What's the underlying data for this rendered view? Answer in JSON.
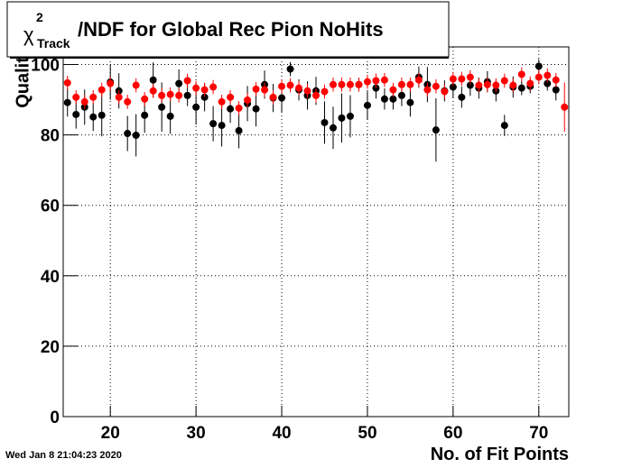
{
  "chart_data": {
    "type": "scatter",
    "title": {
      "symbol": "χ",
      "sup": "2",
      "sub": "Track",
      "text": "/NDF for Global Rec Pion NoHits"
    },
    "x_label": "No. of Fit Points",
    "y_label": "Quality",
    "timestamp": "Wed Jan  8 21:04:23 2020",
    "xlim": [
      14.5,
      73.5
    ],
    "xticks": [
      20,
      30,
      40,
      50,
      60,
      70
    ],
    "ylim": [
      0,
      105
    ],
    "yticks": [
      0,
      20,
      40,
      60,
      80,
      100
    ],
    "grid": true,
    "x": [
      15,
      16,
      17,
      18,
      19,
      20,
      21,
      22,
      23,
      24,
      25,
      26,
      27,
      28,
      29,
      30,
      31,
      32,
      33,
      34,
      35,
      36,
      37,
      38,
      39,
      40,
      41,
      42,
      43,
      44,
      45,
      46,
      47,
      48,
      49,
      50,
      51,
      52,
      53,
      54,
      55,
      56,
      57,
      58,
      59,
      60,
      61,
      62,
      63,
      64,
      65,
      66,
      67,
      68,
      69,
      70,
      71,
      72,
      73
    ],
    "series": [
      {
        "color": "#000000",
        "values": [
          89.2,
          85.8,
          87.9,
          85.1,
          85.6,
          95.0,
          92.5,
          80.4,
          79.9,
          85.6,
          95.6,
          87.9,
          85.3,
          94.6,
          91.2,
          87.9,
          90.7,
          83.2,
          82.7,
          87.4,
          81.2,
          88.9,
          87.4,
          94.3,
          90.5,
          90.5,
          98.7,
          92.8,
          91.2,
          92.5,
          83.5,
          82.0,
          84.8,
          85.3,
          94.3,
          88.4,
          93.3,
          90.2,
          90.2,
          91.2,
          89.2,
          96.4,
          94.3,
          81.4,
          92.5,
          93.6,
          90.7,
          94.1,
          93.3,
          95.1,
          92.5,
          82.7,
          93.6,
          93.3,
          93.8,
          99.5,
          94.6,
          92.8,
          null
        ],
        "errors": [
          4,
          4,
          5,
          4,
          6,
          5,
          5,
          5,
          6,
          5,
          5,
          7,
          5,
          4,
          3,
          5,
          4,
          5,
          6,
          4,
          5,
          5,
          5,
          4,
          4,
          4,
          2,
          3,
          4,
          4,
          6,
          6,
          7,
          6,
          2,
          4,
          3,
          3,
          3,
          3,
          4,
          3,
          5,
          9,
          3,
          3,
          3,
          3,
          3,
          3,
          3,
          3,
          3,
          2,
          2,
          2,
          2,
          3,
          null
        ]
      },
      {
        "color": "#ff0000",
        "values": [
          94.8,
          90.7,
          89.4,
          90.7,
          92.8,
          94.6,
          90.7,
          89.4,
          94.1,
          90.2,
          92.5,
          91.2,
          91.5,
          91.2,
          95.4,
          93.3,
          92.8,
          93.6,
          89.4,
          90.7,
          87.6,
          89.9,
          93.0,
          92.8,
          90.7,
          93.8,
          94.1,
          93.3,
          92.5,
          91.2,
          92.3,
          94.3,
          94.3,
          94.3,
          94.3,
          95.1,
          95.4,
          95.6,
          92.8,
          94.3,
          94.3,
          95.6,
          92.8,
          93.8,
          92.3,
          95.9,
          95.9,
          96.4,
          94.1,
          94.3,
          94.1,
          95.4,
          94.1,
          97.2,
          94.6,
          96.4,
          96.9,
          95.6,
          87.9
        ],
        "errors": [
          2,
          2,
          2,
          2,
          2,
          2,
          2,
          2,
          2,
          2,
          2,
          2,
          2,
          2,
          2,
          2,
          2,
          2,
          2,
          2,
          2,
          2,
          2,
          2,
          2,
          2,
          2,
          2,
          2,
          2,
          2,
          2,
          2,
          2,
          2,
          2,
          2,
          2,
          2,
          2,
          2,
          2,
          2,
          2,
          2,
          2,
          2,
          2,
          2,
          2,
          2,
          2,
          2,
          2,
          2,
          2,
          2,
          2,
          7
        ]
      }
    ]
  }
}
